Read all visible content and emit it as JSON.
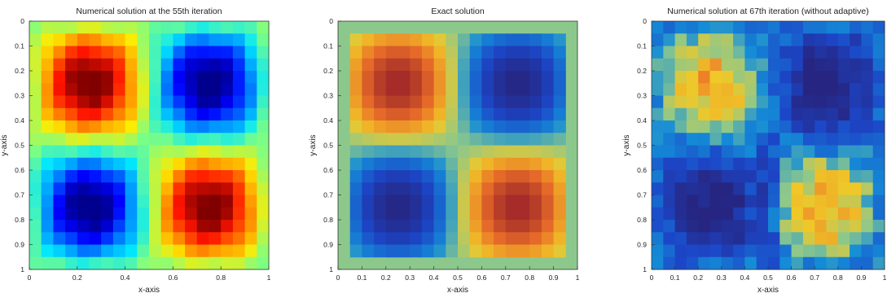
{
  "chart_data": [
    {
      "type": "heatmap",
      "title": "Numerical solution at the 55th iteration",
      "xlabel": "x-axis",
      "ylabel": "y-axis",
      "xlim": [
        0,
        1
      ],
      "ylim": [
        0,
        1
      ],
      "x_ticks": [
        "0",
        "0.2",
        "0.4",
        "0.6",
        "0.8",
        "1"
      ],
      "y_ticks": [
        "0",
        "0.1",
        "0.2",
        "0.3",
        "0.4",
        "0.5",
        "0.6",
        "0.7",
        "0.8",
        "0.9",
        "1"
      ],
      "y_direction": "top-to-bottom",
      "grid_size": 20,
      "field": "sin(2*pi*x)*sin(2*pi*y)",
      "background_value": 0,
      "colormap": "jet",
      "grid": false
    },
    {
      "type": "heatmap",
      "title": "Exact solution",
      "xlabel": "x-axis",
      "ylabel": "y-axis",
      "xlim": [
        0,
        1
      ],
      "ylim": [
        0,
        1
      ],
      "x_ticks": [
        "0",
        "0.1",
        "0.2",
        "0.3",
        "0.4",
        "0.5",
        "0.6",
        "0.7",
        "0.8",
        "0.9",
        "1"
      ],
      "y_ticks": [
        "0",
        "0.1",
        "0.2",
        "0.3",
        "0.4",
        "0.5",
        "0.6",
        "0.7",
        "0.8",
        "0.9",
        "1"
      ],
      "y_direction": "top-to-bottom",
      "grid_size": 20,
      "field": "sin(2*pi*x)*sin(2*pi*y)",
      "background_value": 0,
      "colormap": "parula-like",
      "grid": false
    },
    {
      "type": "heatmap",
      "title": "Numerical solution at 67th iteration (without adaptive)",
      "xlabel": "x-axis",
      "ylabel": "y-axis",
      "xlim": [
        0,
        1
      ],
      "ylim": [
        0,
        1
      ],
      "x_ticks": [
        "0",
        "0.1",
        "0.2",
        "0.3",
        "0.4",
        "0.5",
        "0.6",
        "0.7",
        "0.8",
        "0.9",
        "1"
      ],
      "y_ticks": [
        "0",
        "0.1",
        "0.2",
        "0.3",
        "0.4",
        "0.5",
        "0.6",
        "0.7",
        "0.8",
        "0.9",
        "1"
      ],
      "y_direction": "top-to-bottom",
      "grid_size": 20,
      "field": "noisy sin(2*pi*x)*sin(2*pi*y)",
      "background_value": -0.35,
      "colormap": "parula-like",
      "grid": false
    }
  ]
}
